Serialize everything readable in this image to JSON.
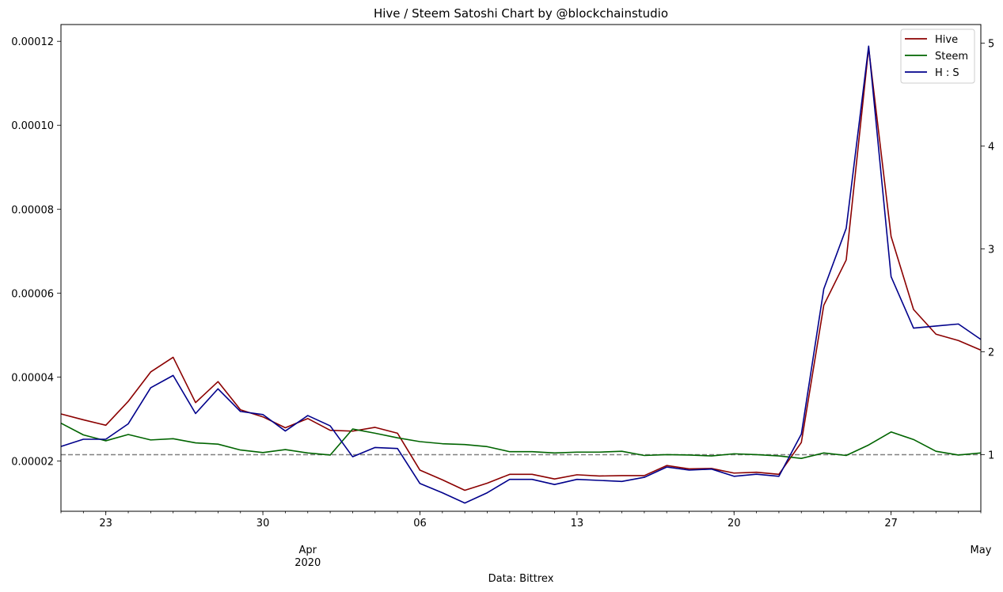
{
  "chart_data": {
    "type": "line",
    "title": "Hive / Steem Satoshi Chart by @blockchainstudio",
    "xlabel": "Data: Bittrex",
    "x": [
      "2020-03-21",
      "2020-03-22",
      "2020-03-23",
      "2020-03-24",
      "2020-03-25",
      "2020-03-26",
      "2020-03-27",
      "2020-03-28",
      "2020-03-29",
      "2020-03-30",
      "2020-03-31",
      "2020-04-01",
      "2020-04-02",
      "2020-04-03",
      "2020-04-04",
      "2020-04-05",
      "2020-04-06",
      "2020-04-07",
      "2020-04-08",
      "2020-04-09",
      "2020-04-10",
      "2020-04-11",
      "2020-04-12",
      "2020-04-13",
      "2020-04-14",
      "2020-04-15",
      "2020-04-16",
      "2020-04-17",
      "2020-04-18",
      "2020-04-19",
      "2020-04-20",
      "2020-04-21",
      "2020-04-22",
      "2020-04-23",
      "2020-04-24",
      "2020-04-25",
      "2020-04-26",
      "2020-04-27",
      "2020-04-28",
      "2020-04-29",
      "2020-04-30",
      "2020-05-01"
    ],
    "x_range": [
      "2020-03-21",
      "2020-05-01"
    ],
    "x_ticks": {
      "major": [
        "23",
        "30",
        "Apr\n2020",
        "06",
        "13",
        "20",
        "27",
        "May"
      ],
      "major_dates": [
        "2020-03-23",
        "2020-03-30",
        "2020-04-01",
        "2020-04-06",
        "2020-04-13",
        "2020-04-20",
        "2020-04-27",
        "2020-05-01"
      ]
    },
    "y_left": {
      "ylim": [
        8e-06,
        0.000124
      ],
      "ticks": [
        "0.00002",
        "0.00004",
        "0.00006",
        "0.00008",
        "0.00010",
        "0.00012"
      ],
      "tick_values": [
        2e-05,
        4e-05,
        6e-05,
        8e-05,
        0.0001,
        0.00012
      ]
    },
    "y_right": {
      "ylim": [
        0.45,
        5.18
      ],
      "ticks": [
        "1",
        "2",
        "3",
        "4",
        "5"
      ],
      "tick_values": [
        1,
        2,
        3,
        4,
        5
      ]
    },
    "reference_line": {
      "axis": "right",
      "value": 1,
      "style": "dashed",
      "color": "#808080"
    },
    "legend": {
      "position": "top-right"
    },
    "series": [
      {
        "name": "Hive",
        "axis": "left",
        "color": "#8b0000",
        "values": [
          3.12e-05,
          2.98e-05,
          2.85e-05,
          3.42e-05,
          4.12e-05,
          4.47e-05,
          3.39e-05,
          3.89e-05,
          3.22e-05,
          3.05e-05,
          2.79e-05,
          3.01e-05,
          2.73e-05,
          2.71e-05,
          2.8e-05,
          2.66e-05,
          1.78e-05,
          1.55e-05,
          1.3e-05,
          1.47e-05,
          1.68e-05,
          1.68e-05,
          1.57e-05,
          1.67e-05,
          1.64e-05,
          1.65e-05,
          1.65e-05,
          1.89e-05,
          1.81e-05,
          1.82e-05,
          1.71e-05,
          1.73e-05,
          1.68e-05,
          2.44e-05,
          5.71e-05,
          6.79e-05,
          0.0001184,
          7.35e-05,
          5.61e-05,
          5.02e-05,
          4.87e-05,
          4.64e-05
        ]
      },
      {
        "name": "Steem",
        "axis": "left",
        "color": "#006400",
        "values": [
          2.9e-05,
          2.62e-05,
          2.48e-05,
          2.63e-05,
          2.5e-05,
          2.53e-05,
          2.43e-05,
          2.4e-05,
          2.26e-05,
          2.2e-05,
          2.27e-05,
          2.19e-05,
          2.14e-05,
          2.76e-05,
          2.66e-05,
          2.55e-05,
          2.46e-05,
          2.41e-05,
          2.39e-05,
          2.34e-05,
          2.22e-05,
          2.22e-05,
          2.19e-05,
          2.21e-05,
          2.21e-05,
          2.23e-05,
          2.13e-05,
          2.15e-05,
          2.14e-05,
          2.12e-05,
          2.17e-05,
          2.15e-05,
          2.12e-05,
          2.06e-05,
          2.19e-05,
          2.13e-05,
          2.38e-05,
          2.69e-05,
          2.51e-05,
          2.23e-05,
          2.14e-05,
          2.19e-05
        ]
      },
      {
        "name": "H : S",
        "axis": "right",
        "color": "#00008b",
        "values": [
          1.08,
          1.15,
          1.15,
          1.3,
          1.65,
          1.77,
          1.4,
          1.64,
          1.42,
          1.39,
          1.23,
          1.38,
          1.28,
          0.98,
          1.07,
          1.06,
          0.72,
          0.63,
          0.53,
          0.63,
          0.76,
          0.76,
          0.71,
          0.76,
          0.75,
          0.74,
          0.78,
          0.88,
          0.85,
          0.86,
          0.79,
          0.81,
          0.79,
          1.2,
          2.61,
          3.2,
          4.97,
          2.73,
          2.23,
          2.25,
          2.27,
          2.12
        ]
      }
    ]
  }
}
